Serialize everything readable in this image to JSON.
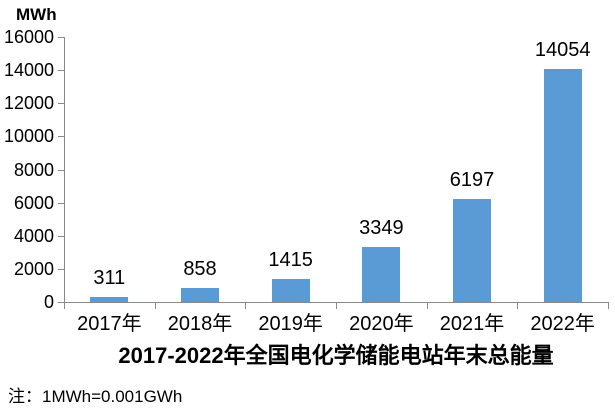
{
  "colors": {
    "bar": "#5B9BD5",
    "axis": "#898989",
    "text": "#000000"
  },
  "footnote": "注：1MWh=0.001GWh",
  "chart_data": {
    "type": "bar",
    "title": "2017-2022年全国电化学储能电站年末总能量",
    "ylabel": "MWh",
    "xlabel": "",
    "categories": [
      "2017年",
      "2018年",
      "2019年",
      "2020年",
      "2021年",
      "2022年"
    ],
    "values": [
      311,
      858,
      1415,
      3349,
      6197,
      14054
    ],
    "ylim": [
      0,
      16000
    ],
    "ytick_step": 2000,
    "grid": false,
    "legend": "none",
    "data_labels": true,
    "bar_color": "#5B9BD5"
  }
}
